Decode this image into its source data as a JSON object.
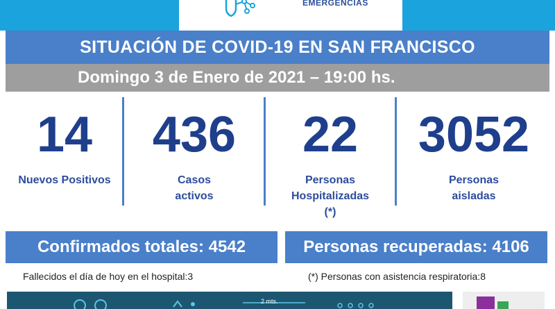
{
  "header": {
    "logo_text": "EMERGENCIAS"
  },
  "title": "SITUACIÓN DE COVID-19 EN SAN FRANCISCO",
  "date": "Domingo 3 de Enero de 2021 – 19:00 hs.",
  "stats": [
    {
      "value": "14",
      "label_line1": "Nuevos Positivos",
      "label_line2": "",
      "label_line3": ""
    },
    {
      "value": "436",
      "label_line1": "Casos",
      "label_line2": "activos",
      "label_line3": ""
    },
    {
      "value": "22",
      "label_line1": "Personas",
      "label_line2": "Hospitalizadas",
      "label_line3": "(*)"
    },
    {
      "value": "3052",
      "label_line1": "Personas",
      "label_line2": "aisladas",
      "label_line3": ""
    }
  ],
  "totals": {
    "confirmed": "Confirmados totales: 4542",
    "recovered": "Personas recuperadas: 4106"
  },
  "notes": {
    "deaths": "Fallecidos el día de hoy en el hospital:3",
    "respiratory": "(*) Personas con asistencia respiratoria:8"
  },
  "footer": {
    "distance_label": "2 mts."
  },
  "colors": {
    "top_band": "#1aa3dc",
    "title_bar": "#4a7fc9",
    "date_bar": "#9e9e9e",
    "numbers": "#1f3f8c",
    "footer_band": "#1d5670"
  }
}
